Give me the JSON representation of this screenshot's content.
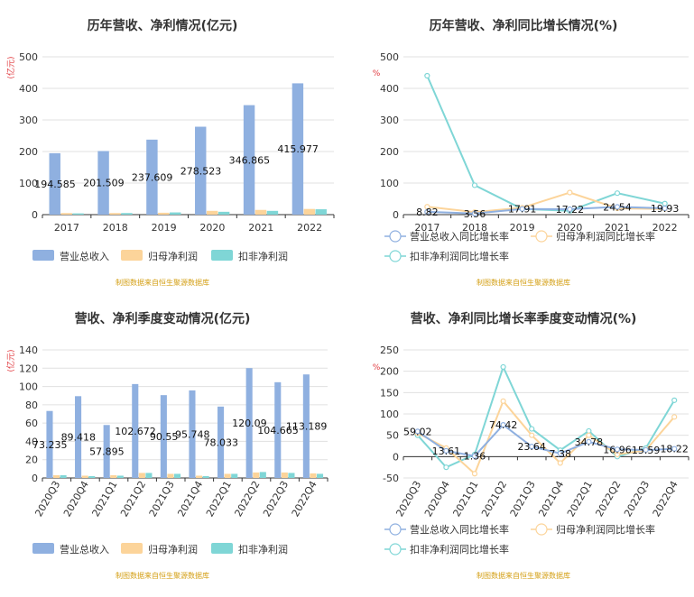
{
  "colors": {
    "revenue": "#8fb0e0",
    "net_profit": "#fcd49a",
    "non_gaap_profit": "#7fd6d6",
    "revenue_line": "#8fb0e0",
    "net_line": "#fcd49a",
    "nonrec_line": "#7fd6d6"
  },
  "chart_data": [
    {
      "type": "bar",
      "title": "历年营收、净利情况(亿元)",
      "ylabel": "(亿元)",
      "categories": [
        "2017",
        "2018",
        "2019",
        "2020",
        "2021",
        "2022"
      ],
      "ylim": [
        0,
        500
      ],
      "yticks": [
        "0",
        "100",
        "200",
        "300",
        "400",
        "500"
      ],
      "series": [
        {
          "name": "营业总收入",
          "values": [
            194.585,
            201.509,
            237.609,
            278.523,
            346.865,
            415.977
          ],
          "labels": [
            "194.585",
            "201.509",
            "237.609",
            "278.523",
            "346.865",
            "415.977"
          ]
        },
        {
          "name": "归母净利润",
          "values": [
            5,
            5,
            6,
            12,
            15,
            18
          ]
        },
        {
          "name": "扣非净利润",
          "values": [
            4,
            5,
            7,
            9,
            12,
            17
          ]
        }
      ],
      "legend": "bottom",
      "source": "制图数据来自恒生聚源数据库"
    },
    {
      "type": "line",
      "title": "历年营收、净利同比增长情况(%)",
      "ylabel": "%",
      "categories": [
        "2017",
        "2018",
        "2019",
        "2020",
        "2021",
        "2022"
      ],
      "ylim": [
        0,
        500
      ],
      "yticks": [
        "0",
        "100",
        "200",
        "300",
        "400",
        "500"
      ],
      "series": [
        {
          "name": "营业总收入同比增长率",
          "values": [
            8.82,
            3.56,
            17.91,
            17.22,
            24.54,
            19.93
          ],
          "labels": [
            "8.82",
            "3.56",
            "17.91",
            "17.22",
            "24.54",
            "19.93"
          ]
        },
        {
          "name": "归母净利润同比增长率",
          "values": [
            25,
            8,
            22,
            70,
            20,
            18
          ]
        },
        {
          "name": "扣非净利润同比增长率",
          "values": [
            440,
            93,
            18,
            12,
            68,
            35
          ]
        }
      ],
      "legend": "bottom",
      "source": "制图数据来自恒生聚源数据库"
    },
    {
      "type": "bar",
      "title": "营收、净利季度变动情况(亿元)",
      "ylabel": "(亿元)",
      "categories": [
        "2020Q3",
        "2020Q4",
        "2021Q1",
        "2021Q2",
        "2021Q3",
        "2021Q4",
        "2022Q1",
        "2022Q2",
        "2022Q3",
        "2022Q4"
      ],
      "ylim": [
        0,
        140
      ],
      "yticks": [
        "0",
        "20",
        "40",
        "60",
        "80",
        "100",
        "120",
        "140"
      ],
      "series": [
        {
          "name": "营业总收入",
          "values": [
            73.235,
            89.418,
            57.895,
            102.672,
            90.55,
            95.748,
            78.033,
            120.09,
            104.665,
            113.189
          ],
          "labels": [
            "73.235",
            "89.418",
            "57.895",
            "102.672",
            "90.55",
            "95.748",
            "78.033",
            "120.09",
            "104.665",
            "113.189"
          ]
        },
        {
          "name": "归母净利润",
          "values": [
            3,
            2.5,
            3,
            5.5,
            4.5,
            2.5,
            4.5,
            6,
            6,
            5
          ]
        },
        {
          "name": "扣非净利润",
          "values": [
            3,
            2,
            2.5,
            5.5,
            4.5,
            2,
            4.5,
            6.5,
            5.5,
            4.5
          ]
        }
      ],
      "legend": "bottom",
      "source": "制图数据来自恒生聚源数据库"
    },
    {
      "type": "line",
      "title": "营收、净利同比增长率季度变动情况(%)",
      "ylabel": "%",
      "categories": [
        "2020Q3",
        "2020Q4",
        "2021Q1",
        "2021Q2",
        "2021Q3",
        "2021Q4",
        "2022Q1",
        "2022Q2",
        "2022Q3",
        "2022Q4"
      ],
      "ylim": [
        -50,
        250
      ],
      "yticks": [
        "-50",
        "0",
        "50",
        "100",
        "150",
        "200",
        "250"
      ],
      "series": [
        {
          "name": "营业总收入同比增长率",
          "values": [
            59.02,
            13.61,
            1.36,
            74.42,
            23.64,
            7.38,
            34.78,
            16.96,
            15.59,
            18.22
          ],
          "labels": [
            "59.02",
            "13.61",
            "1.36",
            "74.42",
            "23.64",
            "7.38",
            "34.78",
            "16.96",
            "15.59",
            "18.22"
          ]
        },
        {
          "name": "归母净利润同比增长率",
          "values": [
            55,
            20,
            -40,
            130,
            50,
            -15,
            50,
            5,
            15,
            93
          ]
        },
        {
          "name": "扣非净利润同比增长率",
          "values": [
            50,
            -25,
            5,
            210,
            65,
            15,
            60,
            0,
            20,
            132
          ]
        }
      ],
      "legend": "bottom",
      "source": "制图数据来自恒生聚源数据库"
    }
  ]
}
